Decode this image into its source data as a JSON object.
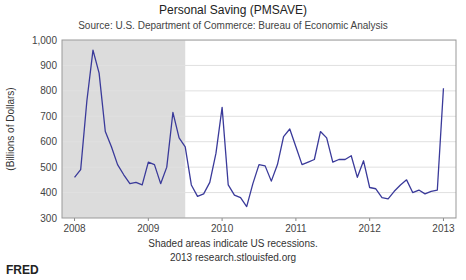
{
  "chart_data": {
    "type": "line",
    "title": "Personal Saving (PMSAVE)",
    "subtitle": "Source: U.S. Department of Commerce: Bureau of Economic Analysis",
    "ylabel": "(Billions of Dollars)",
    "annotations": [
      "Shaded areas indicate US recessions.",
      "2013 research.stlouisfed.org",
      "FRED"
    ],
    "x": [
      2008.0,
      2008.083,
      2008.167,
      2008.25,
      2008.333,
      2008.417,
      2008.5,
      2008.583,
      2008.667,
      2008.75,
      2008.833,
      2008.917,
      2009.0,
      2009.083,
      2009.167,
      2009.25,
      2009.333,
      2009.417,
      2009.5,
      2009.583,
      2009.667,
      2009.75,
      2009.833,
      2009.917,
      2010.0,
      2010.083,
      2010.167,
      2010.25,
      2010.333,
      2010.417,
      2010.5,
      2010.583,
      2010.667,
      2010.75,
      2010.833,
      2010.917,
      2011.0,
      2011.083,
      2011.167,
      2011.25,
      2011.333,
      2011.417,
      2011.5,
      2011.583,
      2011.667,
      2011.75,
      2011.833,
      2011.917,
      2012.0,
      2012.083,
      2012.167,
      2012.25,
      2012.333,
      2012.417,
      2012.5,
      2012.583,
      2012.667,
      2012.75,
      2012.833,
      2012.917,
      2013.0
    ],
    "values": [
      460,
      490,
      760,
      960,
      870,
      640,
      580,
      510,
      470,
      435,
      440,
      430,
      520,
      510,
      435,
      500,
      715,
      615,
      580,
      430,
      385,
      395,
      440,
      555,
      735,
      430,
      390,
      380,
      345,
      435,
      510,
      505,
      445,
      510,
      620,
      650,
      580,
      510,
      520,
      530,
      640,
      615,
      520,
      530,
      530,
      545,
      460,
      525,
      420,
      415,
      380,
      375,
      405,
      430,
      450,
      400,
      410,
      395,
      405,
      410,
      810
    ],
    "color": "#3a3a9a",
    "shaded": [
      {
        "start": 2007.83,
        "end": 2009.5
      }
    ],
    "xlim": [
      2007.83,
      2013.17
    ],
    "xticks": [
      2008,
      2009,
      2010,
      2011,
      2012,
      2013
    ],
    "ylim": [
      300,
      1000
    ],
    "yticks": [
      300,
      400,
      500,
      600,
      700,
      800,
      900,
      {
        "value": 1000,
        "label": "1,000"
      }
    ],
    "grid": true
  }
}
